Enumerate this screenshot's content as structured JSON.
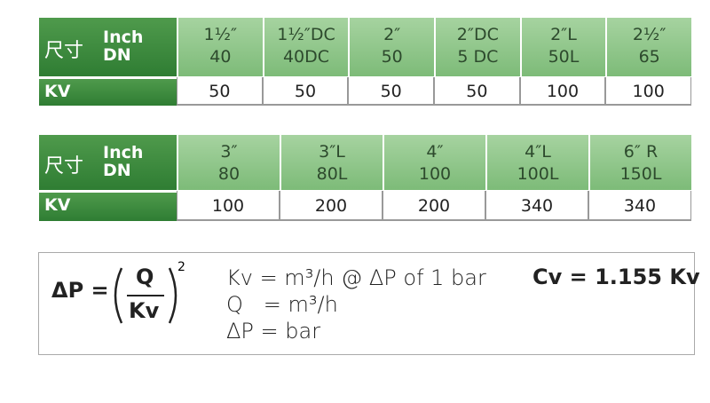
{
  "tables": [
    {
      "label_cjk": "尺寸",
      "label_inch": "Inch",
      "label_dn": "DN",
      "kv_label": "KV",
      "columns": [
        {
          "inch": "1½″",
          "dn": "40",
          "kv": 50
        },
        {
          "inch": "1½″DC",
          "dn": "40DC",
          "kv": 50
        },
        {
          "inch": "2″",
          "dn": "50",
          "kv": 50
        },
        {
          "inch": "2″DC",
          "dn": "5 DC",
          "kv": 50
        },
        {
          "inch": "2″L",
          "dn": "50L",
          "kv": 100
        },
        {
          "inch": "2½″",
          "dn": "65",
          "kv": 100
        }
      ]
    },
    {
      "label_cjk": "尺寸",
      "label_inch": "Inch",
      "label_dn": "DN",
      "kv_label": "KV",
      "columns": [
        {
          "inch": "3″",
          "dn": "80",
          "kv": 100
        },
        {
          "inch": "3″L",
          "dn": "80L",
          "kv": 200
        },
        {
          "inch": "4″",
          "dn": "100",
          "kv": 200
        },
        {
          "inch": "4″L",
          "dn": "100L",
          "kv": 340
        },
        {
          "inch": "6″ R",
          "dn": "150L",
          "kv": 340
        }
      ]
    }
  ],
  "formula": {
    "lhs": "ΔP =",
    "numerator": "Q",
    "denominator": "Kv",
    "exponent": "2",
    "defs": [
      "Kv = m³/h @ ΔP of 1 bar",
      "Q   = m³/h",
      "ΔP = bar"
    ],
    "cv": "Cv = 1.155 Kv"
  }
}
